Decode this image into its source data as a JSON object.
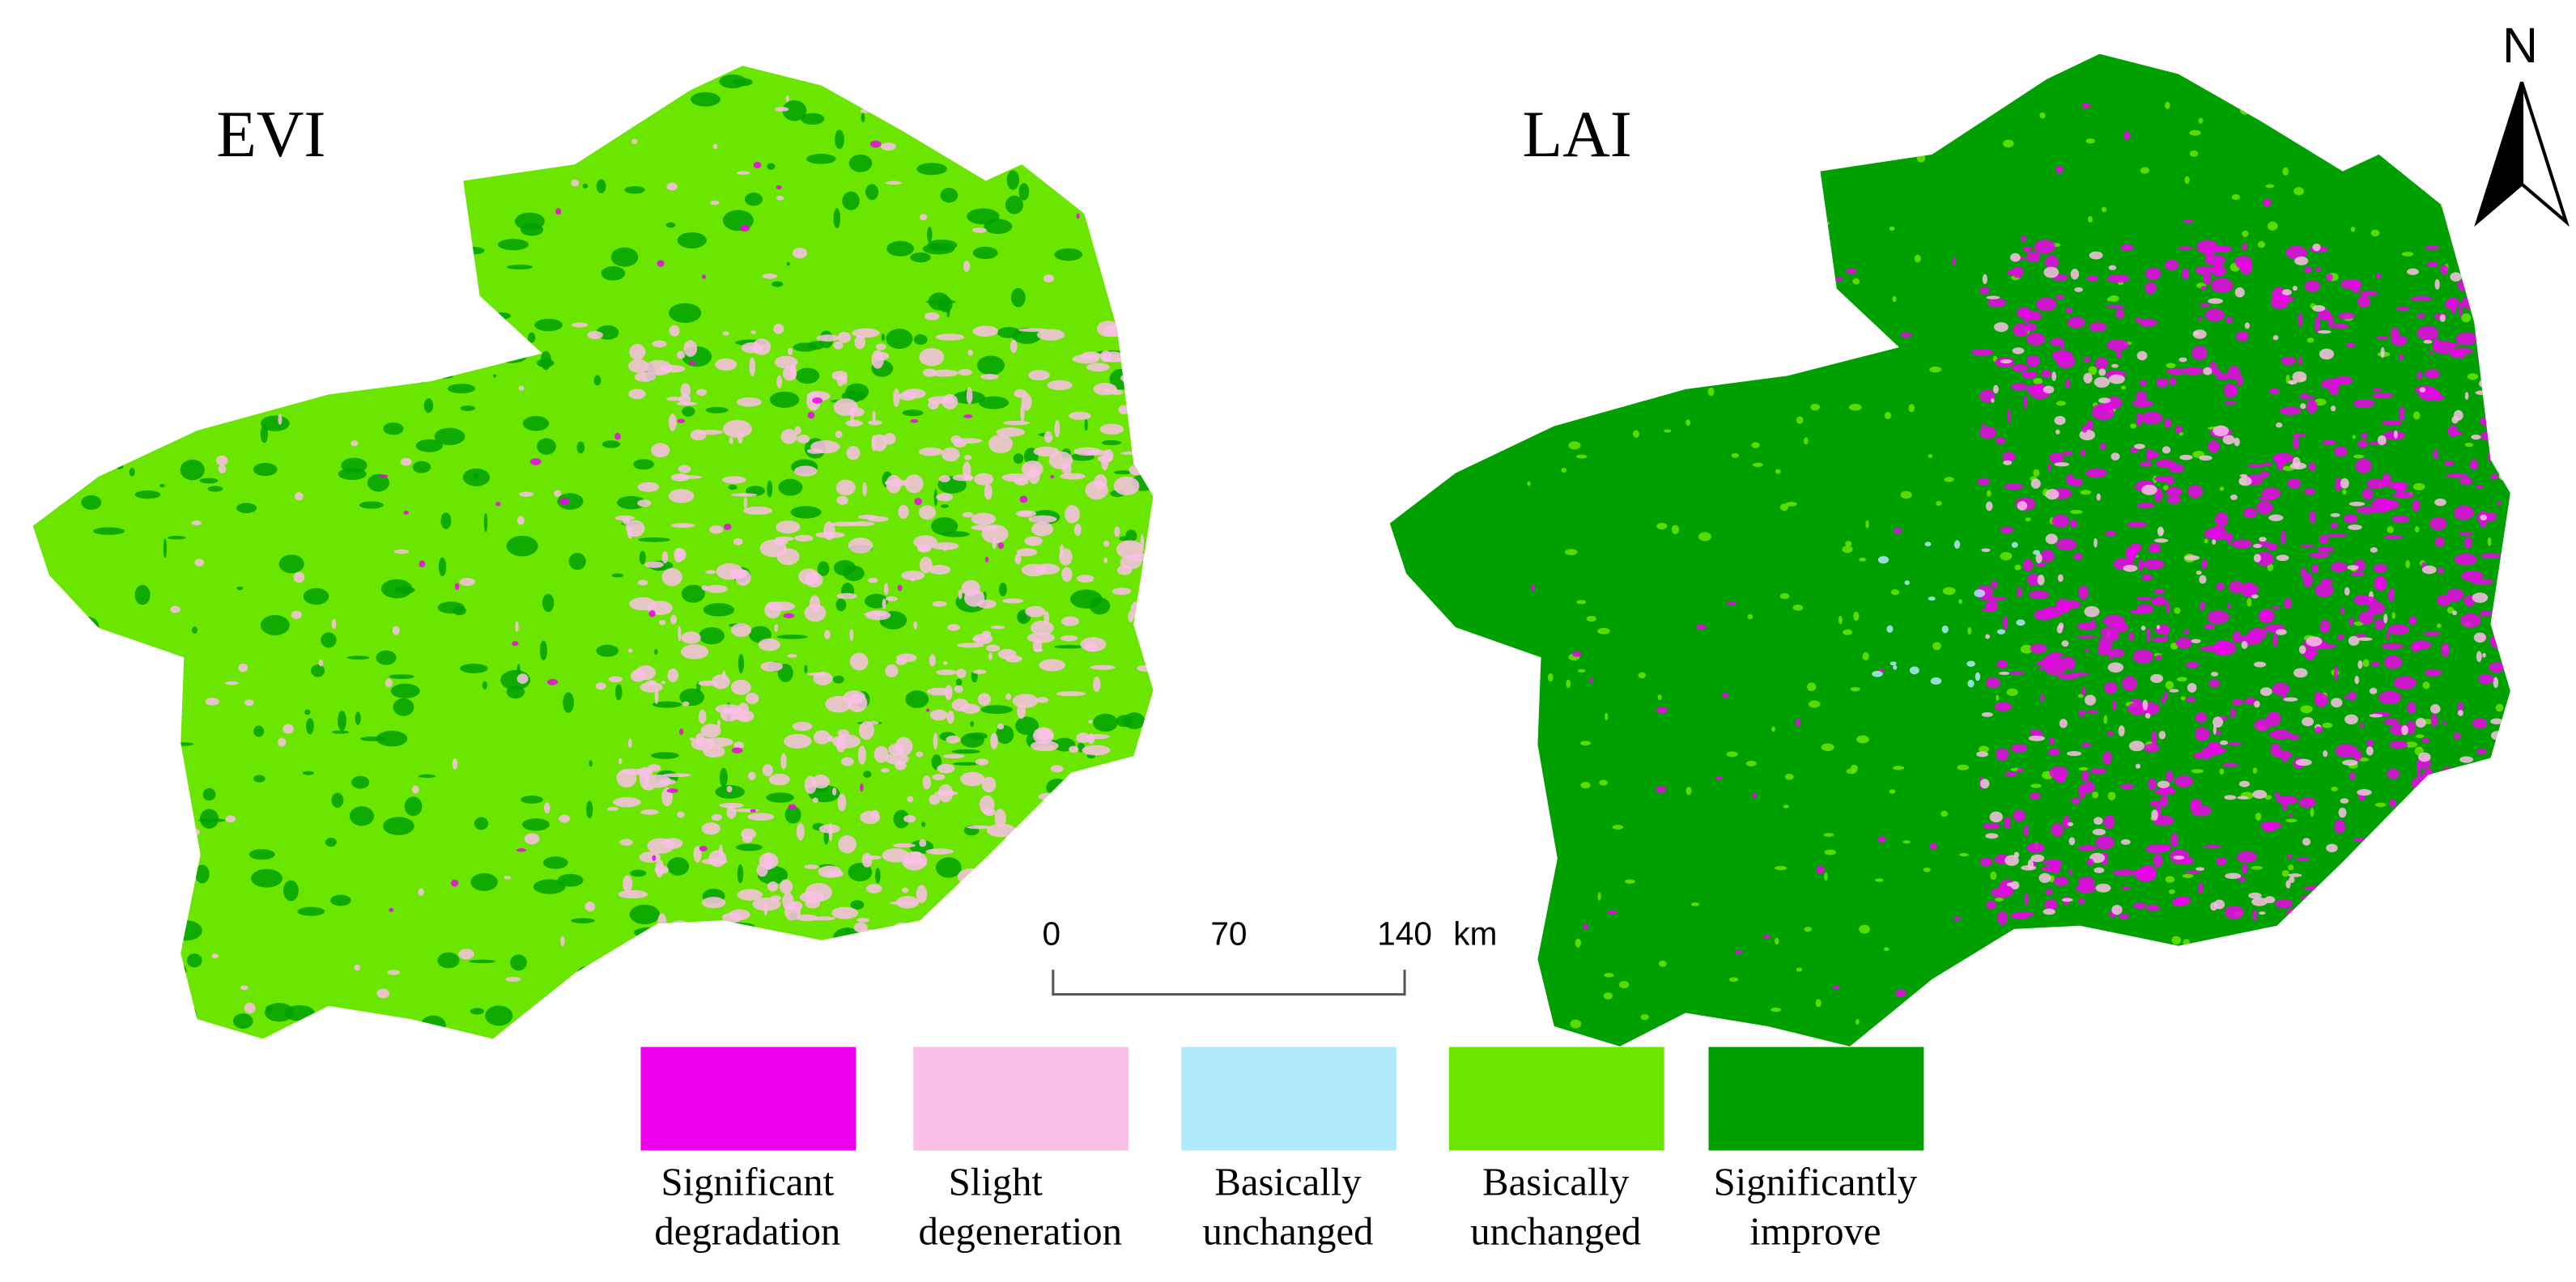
{
  "maps": [
    {
      "title": "EVI"
    },
    {
      "title": "LAI"
    }
  ],
  "north_arrow": "N",
  "scale_bar": {
    "ticks": [
      "0",
      "70",
      "140"
    ],
    "unit": "km"
  },
  "legend": {
    "items": [
      {
        "color": "#ee00ee",
        "label": [
          "Significant",
          "degradation"
        ]
      },
      {
        "color": "#fcc0e8",
        "label": [
          "Slight",
          "degeneration"
        ]
      },
      {
        "color": "#b0e8fc",
        "label": [
          "Basically",
          "unchanged"
        ]
      },
      {
        "color": "#6ae600",
        "label": [
          "Basically",
          "unchanged"
        ]
      },
      {
        "color": "#00a000",
        "label": [
          "Significantly",
          "improve"
        ]
      }
    ]
  }
}
